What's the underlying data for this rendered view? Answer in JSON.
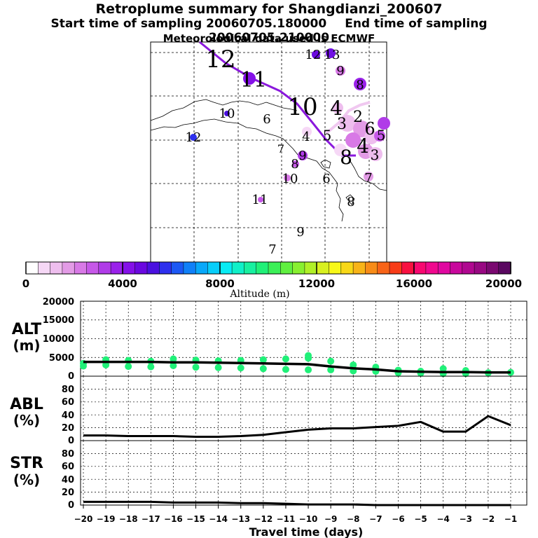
{
  "header": {
    "title": "Retroplume summary for Shangdianzi_200607",
    "start_label": "Start time of sampling 20060705.180000",
    "end_label": "End time of sampling 20060705.210000",
    "met_label": "Meteorological data used is ECMWF"
  },
  "colorbar": {
    "ticks": [
      "0",
      "4000",
      "8000",
      "12000",
      "16000",
      "20000"
    ],
    "label": "Altitude (m)",
    "colors": [
      "#ffffff",
      "#f6d8f6",
      "#eebeee",
      "#e39be6",
      "#d879e6",
      "#c658e8",
      "#b03ce8",
      "#9a22ea",
      "#8410e8",
      "#6a08e0",
      "#4a10e0",
      "#2e30ee",
      "#1c58f4",
      "#1080f8",
      "#08a8fa",
      "#08cefa",
      "#08ecf4",
      "#10f0c8",
      "#18f0a0",
      "#20f078",
      "#3cf058",
      "#60f040",
      "#88f030",
      "#b0f028",
      "#d8f020",
      "#f8f818",
      "#f8d818",
      "#f8b418",
      "#f88c18",
      "#f86418",
      "#f83c18",
      "#f81040",
      "#f80870",
      "#f0088e",
      "#e008a0",
      "#c8089c",
      "#b00890",
      "#980882",
      "#7a0870",
      "#5a0860"
    ]
  },
  "map": {
    "numbers": [
      {
        "t": "12",
        "s": "big"
      },
      {
        "t": "11",
        "s": "big"
      },
      {
        "t": "10",
        "s": "big"
      },
      {
        "t": "4",
        "s": "big"
      },
      {
        "t": "12",
        "s": "small"
      },
      {
        "t": "13",
        "s": "small"
      },
      {
        "t": "9",
        "s": "small"
      },
      {
        "t": "8",
        "s": "small"
      },
      {
        "t": "10",
        "s": "small"
      },
      {
        "t": "6",
        "s": "small"
      },
      {
        "t": "12",
        "s": "small"
      },
      {
        "t": "7",
        "s": "small"
      },
      {
        "t": "4",
        "s": "small"
      },
      {
        "t": "9",
        "s": "small"
      },
      {
        "t": "8",
        "s": "small"
      },
      {
        "t": "10",
        "s": "small"
      },
      {
        "t": "6",
        "s": "small"
      },
      {
        "t": "8",
        "s": "small"
      },
      {
        "t": "11",
        "s": "small"
      },
      {
        "t": "9",
        "s": "small"
      },
      {
        "t": "7",
        "s": "small"
      },
      {
        "t": "5",
        "s": "small"
      },
      {
        "t": "3",
        "s": "small"
      },
      {
        "t": "2",
        "s": "small"
      },
      {
        "t": "6",
        "s": "small"
      },
      {
        "t": "5",
        "s": "small"
      },
      {
        "t": "3",
        "s": "small"
      },
      {
        "t": "7",
        "s": "small"
      },
      {
        "t": "8",
        "s": "big"
      },
      {
        "t": "4",
        "s": "big"
      }
    ]
  },
  "panels": {
    "alt": {
      "label1": "ALT",
      "label2": "(m)"
    },
    "abl": {
      "label1": "ABL",
      "label2": "(%)"
    },
    "str": {
      "label1": "STR",
      "label2": "(%)"
    },
    "xlabel": "Travel time (days)"
  },
  "chart_data": [
    {
      "type": "line",
      "title": "ALT",
      "ylabel": "(m)",
      "xlabel": "Travel time (days)",
      "ylim": [
        0,
        20000
      ],
      "yticks": [
        "0",
        "5000",
        "10000",
        "15000",
        "20000"
      ],
      "x": [
        -20,
        -19,
        -18,
        -17,
        -16,
        -15,
        -14,
        -13,
        -12,
        -11,
        -10,
        -9,
        -8,
        -7,
        -6,
        -5,
        -4,
        -3,
        -2,
        -1
      ],
      "series": [
        {
          "name": "mean altitude",
          "values": [
            3800,
            3800,
            3800,
            3800,
            3700,
            3700,
            3600,
            3500,
            3400,
            3300,
            3200,
            2600,
            2100,
            1800,
            1300,
            1200,
            1100,
            1100,
            1000,
            1000
          ]
        }
      ],
      "scatter": [
        {
          "x": -20,
          "y": 3400
        },
        {
          "x": -20,
          "y": 2700
        },
        {
          "x": -19,
          "y": 4400
        },
        {
          "x": -19,
          "y": 3000
        },
        {
          "x": -18,
          "y": 4200
        },
        {
          "x": -18,
          "y": 2600
        },
        {
          "x": -17,
          "y": 4000
        },
        {
          "x": -17,
          "y": 2500
        },
        {
          "x": -16,
          "y": 4600
        },
        {
          "x": -16,
          "y": 2800
        },
        {
          "x": -15,
          "y": 4300
        },
        {
          "x": -15,
          "y": 2400
        },
        {
          "x": -14,
          "y": 4100
        },
        {
          "x": -14,
          "y": 2300
        },
        {
          "x": -13,
          "y": 4200
        },
        {
          "x": -13,
          "y": 2200
        },
        {
          "x": -12,
          "y": 4400
        },
        {
          "x": -12,
          "y": 2000
        },
        {
          "x": -11,
          "y": 4600
        },
        {
          "x": -11,
          "y": 1800
        },
        {
          "x": -10,
          "y": 5500
        },
        {
          "x": -10,
          "y": 4800
        },
        {
          "x": -10,
          "y": 1700
        },
        {
          "x": -9,
          "y": 4000
        },
        {
          "x": -9,
          "y": 1700
        },
        {
          "x": -8,
          "y": 3000
        },
        {
          "x": -8,
          "y": 1400
        },
        {
          "x": -7,
          "y": 2400
        },
        {
          "x": -7,
          "y": 1300
        },
        {
          "x": -6,
          "y": 1600
        },
        {
          "x": -6,
          "y": 900
        },
        {
          "x": -5,
          "y": 1300
        },
        {
          "x": -5,
          "y": 800
        },
        {
          "x": -4,
          "y": 2000
        },
        {
          "x": -4,
          "y": 700
        },
        {
          "x": -3,
          "y": 1500
        },
        {
          "x": -3,
          "y": 700
        },
        {
          "x": -2,
          "y": 900
        },
        {
          "x": -1,
          "y": 1000
        }
      ]
    },
    {
      "type": "line",
      "title": "ABL",
      "ylabel": "(%)",
      "ylim": [
        0,
        100
      ],
      "yticks": [
        "0",
        "20",
        "40",
        "60",
        "80"
      ],
      "x": [
        -20,
        -19,
        -18,
        -17,
        -16,
        -15,
        -14,
        -13,
        -12,
        -11,
        -10,
        -9,
        -8,
        -7,
        -6,
        -5,
        -4,
        -3,
        -2,
        -1
      ],
      "series": [
        {
          "name": "ABL",
          "values": [
            8,
            8,
            7,
            7,
            7,
            6,
            6,
            7,
            9,
            13,
            17,
            19,
            19,
            21,
            23,
            29,
            14,
            14,
            38,
            24
          ]
        }
      ]
    },
    {
      "type": "line",
      "title": "STR",
      "ylabel": "(%)",
      "ylim": [
        0,
        100
      ],
      "yticks": [
        "0",
        "20",
        "40",
        "60",
        "80"
      ],
      "x": [
        -20,
        -19,
        -18,
        -17,
        -16,
        -15,
        -14,
        -13,
        -12,
        -11,
        -10,
        -9,
        -8,
        -7,
        -6,
        -5,
        -4,
        -3,
        -2,
        -1
      ],
      "xticks": [
        "−20",
        "−19",
        "−18",
        "−17",
        "−16",
        "−15",
        "−14",
        "−13",
        "−12",
        "−11",
        "−10",
        "−9",
        "−8",
        "−7",
        "−6",
        "−5",
        "−4",
        "−3",
        "−2",
        "−1"
      ],
      "series": [
        {
          "name": "STR",
          "values": [
            5,
            5,
            5,
            5,
            4,
            4,
            4,
            3,
            3,
            2,
            1,
            1,
            1,
            0,
            0,
            0,
            0,
            0,
            0,
            0
          ]
        }
      ]
    }
  ]
}
